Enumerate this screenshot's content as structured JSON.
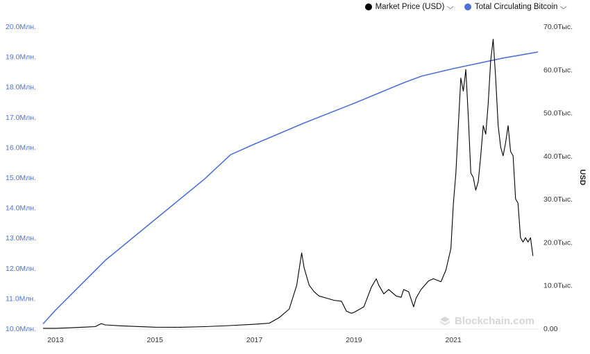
{
  "legend": {
    "items": [
      {
        "label": "Market Price (USD)",
        "color": "#000000"
      },
      {
        "label": "Total Circulating Bitcoin",
        "color": "#4e71d6"
      }
    ]
  },
  "watermark": "Blockchain.com",
  "chart_data": {
    "type": "line",
    "x_axis": {
      "range": [
        2012.75,
        2022.7
      ],
      "ticks": [
        2013,
        2015,
        2017,
        2019,
        2021
      ],
      "tick_labels": [
        "2013",
        "2015",
        "2017",
        "2019",
        "2021"
      ]
    },
    "y_left": {
      "range": [
        10.0,
        20.0
      ],
      "ticks": [
        10,
        11,
        12,
        13,
        14,
        15,
        16,
        17,
        18,
        19,
        20
      ],
      "tick_labels": [
        "10.0Млн.",
        "11.0Млн.",
        "12.0Млн.",
        "13.0Млн.",
        "14.0Млн.",
        "15.0Млн.",
        "16.0Млн.",
        "17.0Млн.",
        "18.0Млн.",
        "19.0Млн.",
        "20.0Млн."
      ],
      "color": "#4e71d6"
    },
    "y_right": {
      "label": "USD",
      "range": [
        0,
        70000
      ],
      "ticks": [
        0,
        10000,
        20000,
        30000,
        40000,
        50000,
        60000,
        70000
      ],
      "tick_labels": [
        "0.00",
        "10.0Тыс.",
        "20.0Тыс.",
        "30.0Тыс.",
        "40.0Тыс.",
        "50.0Тыс.",
        "60.0Тыс.",
        "70.0Тыс."
      ],
      "color": "#333333"
    },
    "series": [
      {
        "name": "Total Circulating Bitcoin",
        "axis": "left",
        "color": "#4e71d6",
        "x": [
          2012.75,
          2013.0,
          2014.0,
          2015.0,
          2016.0,
          2016.52,
          2017.0,
          2018.0,
          2019.0,
          2020.0,
          2020.36,
          2021.0,
          2022.0,
          2022.7
        ],
        "y": [
          10.15,
          10.6,
          12.25,
          13.6,
          14.95,
          15.75,
          16.1,
          16.8,
          17.45,
          18.13,
          18.35,
          18.6,
          18.95,
          19.15
        ]
      },
      {
        "name": "Market Price (USD)",
        "axis": "right",
        "color": "#000000",
        "x": [
          2012.75,
          2013.0,
          2013.2,
          2013.8,
          2013.92,
          2014.0,
          2014.3,
          2014.6,
          2015.0,
          2015.5,
          2016.0,
          2016.5,
          2017.0,
          2017.3,
          2017.5,
          2017.7,
          2017.85,
          2017.95,
          2018.0,
          2018.1,
          2018.2,
          2018.3,
          2018.45,
          2018.6,
          2018.75,
          2018.85,
          2018.95,
          2019.0,
          2019.2,
          2019.35,
          2019.45,
          2019.5,
          2019.6,
          2019.7,
          2019.85,
          2019.95,
          2020.0,
          2020.1,
          2020.2,
          2020.25,
          2020.35,
          2020.5,
          2020.6,
          2020.75,
          2020.85,
          2020.95,
          2021.0,
          2021.05,
          2021.1,
          2021.15,
          2021.2,
          2021.25,
          2021.3,
          2021.35,
          2021.4,
          2021.45,
          2021.5,
          2021.55,
          2021.6,
          2021.65,
          2021.7,
          2021.75,
          2021.8,
          2021.85,
          2021.9,
          2021.95,
          2022.0,
          2022.05,
          2022.1,
          2022.15,
          2022.2,
          2022.25,
          2022.3,
          2022.35,
          2022.4,
          2022.45,
          2022.5,
          2022.55,
          2022.6
        ],
        "y": [
          10,
          20,
          100,
          400,
          1100,
          800,
          600,
          450,
          280,
          250,
          400,
          650,
          950,
          1200,
          2500,
          4500,
          10000,
          17500,
          14000,
          10000,
          8500,
          7500,
          7000,
          6500,
          6300,
          4000,
          3500,
          3700,
          5000,
          9500,
          11500,
          10000,
          8000,
          9000,
          7500,
          7200,
          9000,
          8500,
          5000,
          7000,
          9000,
          11000,
          11500,
          10800,
          13500,
          18500,
          29000,
          36000,
          47000,
          58000,
          55000,
          60000,
          49000,
          36000,
          35000,
          32000,
          34000,
          40000,
          47000,
          45000,
          52000,
          62000,
          67000,
          58000,
          47000,
          42000,
          40000,
          43000,
          47000,
          41000,
          40000,
          30000,
          29000,
          21000,
          20000,
          21000,
          20000,
          21000,
          16800
        ]
      }
    ]
  }
}
